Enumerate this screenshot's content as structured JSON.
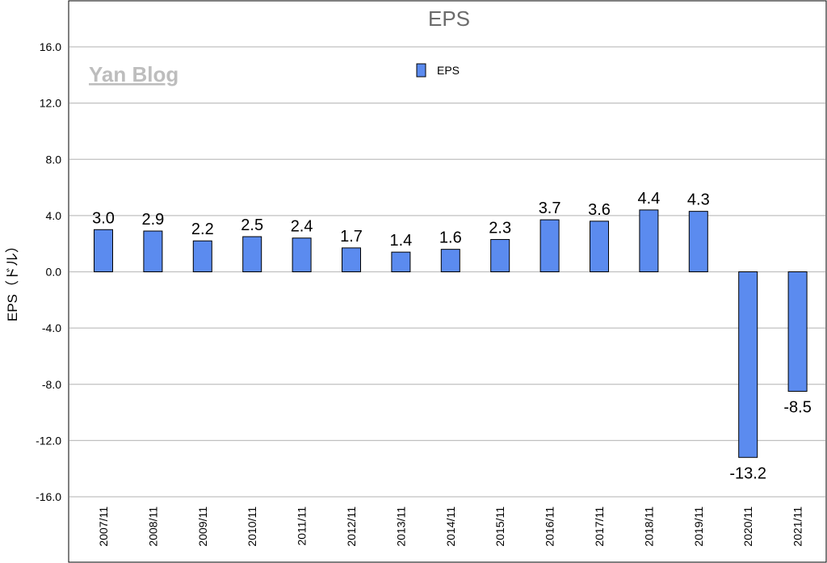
{
  "watermark": "Yan Blog",
  "chart_data": {
    "type": "bar",
    "title": "EPS",
    "ylabel": "EPS（ドル）",
    "xlabel": "",
    "ylim": [
      -16,
      16
    ],
    "yticks": [
      16,
      12,
      8,
      4,
      0,
      -4,
      -8,
      -12,
      -16
    ],
    "grid": true,
    "legend_position": "top-center",
    "categories": [
      "2007/11",
      "2008/11",
      "2009/11",
      "2010/11",
      "2011/11",
      "2012/11",
      "2013/11",
      "2014/11",
      "2015/11",
      "2016/11",
      "2017/11",
      "2018/11",
      "2019/11",
      "2020/11",
      "2021/11"
    ],
    "series": [
      {
        "name": "EPS",
        "color": "#5b8bef",
        "values": [
          3.0,
          2.9,
          2.2,
          2.5,
          2.4,
          1.7,
          1.4,
          1.6,
          2.3,
          3.7,
          3.6,
          4.4,
          4.3,
          -13.2,
          -8.5
        ]
      }
    ]
  }
}
